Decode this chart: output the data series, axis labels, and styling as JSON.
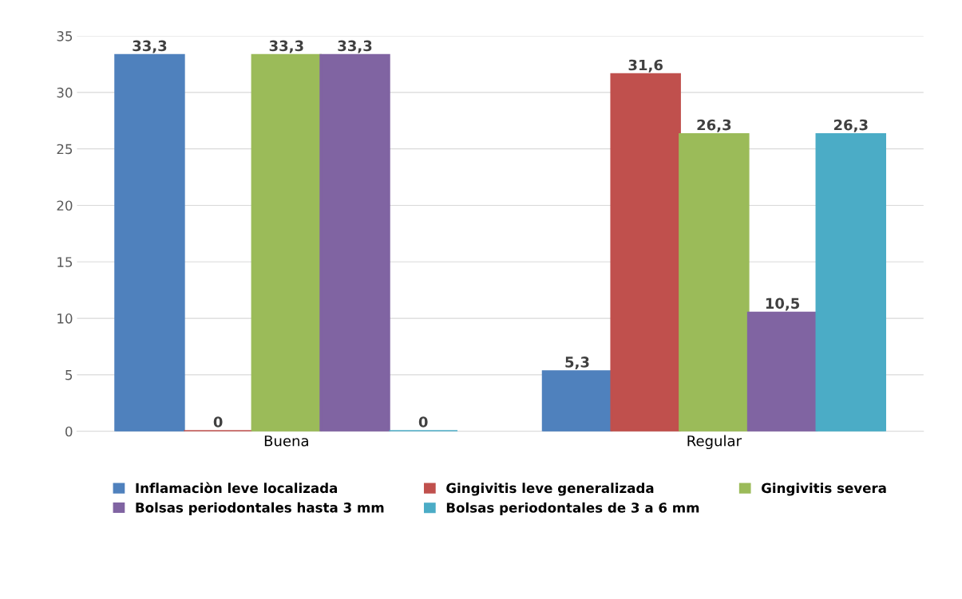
{
  "chart_data": {
    "type": "bar",
    "categories": [
      "Buena",
      "Regular"
    ],
    "series": [
      {
        "name": "Inflamaciòn leve localizada",
        "color": "#4f81bd",
        "values": [
          33.3,
          5.3
        ],
        "value_labels": [
          "33,3",
          "5,3"
        ]
      },
      {
        "name": "Gingivitis leve generalizada",
        "color": "#c0504d",
        "values": [
          0,
          31.6
        ],
        "value_labels": [
          "0",
          "31,6"
        ]
      },
      {
        "name": "Gingivitis severa",
        "color": "#9bbb59",
        "values": [
          33.3,
          26.3
        ],
        "value_labels": [
          "33,3",
          "26,3"
        ]
      },
      {
        "name": "Bolsas periodontales hasta 3 mm",
        "color": "#8064a2",
        "values": [
          33.3,
          10.5
        ],
        "value_labels": [
          "33,3",
          "10,5"
        ]
      },
      {
        "name": "Bolsas periodontales de 3 a 6 mm",
        "color": "#4bacc6",
        "values": [
          0,
          26.3
        ],
        "value_labels": [
          "0",
          "26,3"
        ]
      }
    ],
    "ylim": [
      0,
      35
    ],
    "yticks": [
      0,
      5,
      10,
      15,
      20,
      25,
      30,
      35
    ],
    "grid": "y",
    "legend": "bottom"
  }
}
